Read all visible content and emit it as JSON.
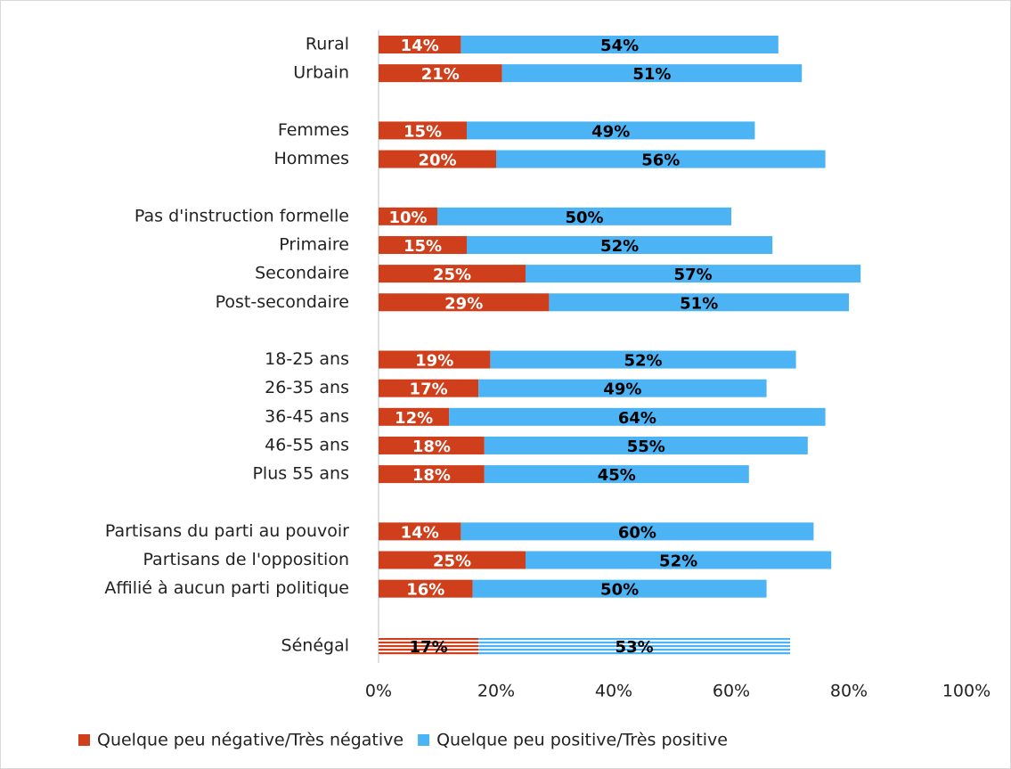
{
  "chart_data": {
    "type": "stacked_bar_horizontal",
    "categories": [
      "Rural",
      "Urbain",
      null,
      "Femmes",
      "Hommes",
      null,
      "Pas d'instruction formelle",
      "Primaire",
      "Secondaire",
      "Post-secondaire",
      null,
      "18-25 ans",
      "26-35 ans",
      "36-45 ans",
      "46-55 ans",
      "Plus 55 ans",
      null,
      "Partisans du parti au pouvoir",
      "Partisans de l'opposition",
      "Affilié à aucun parti politique",
      null,
      "Sénégal"
    ],
    "series": [
      {
        "name": "Quelque peu négative/Très négative",
        "color": "#cf3f1b",
        "values": [
          14,
          21,
          null,
          15,
          20,
          null,
          10,
          15,
          25,
          29,
          null,
          19,
          17,
          12,
          18,
          18,
          null,
          14,
          25,
          16,
          null,
          17
        ],
        "value_labels": [
          "14%",
          "21%",
          null,
          "15%",
          "20%",
          null,
          "10%",
          "15%",
          "25%",
          "29%",
          null,
          "19%",
          "17%",
          "12%",
          "18%",
          "18%",
          null,
          "14%",
          "25%",
          "16%",
          null,
          "17%"
        ]
      },
      {
        "name": "Quelque peu positive/Très positive",
        "color": "#4cb3f4",
        "values": [
          54,
          51,
          null,
          49,
          56,
          null,
          50,
          52,
          57,
          51,
          null,
          52,
          49,
          64,
          55,
          45,
          null,
          60,
          52,
          50,
          null,
          53
        ],
        "value_labels": [
          "54%",
          "51%",
          null,
          "49%",
          "56%",
          null,
          "50%",
          "52%",
          "57%",
          "51%",
          null,
          "52%",
          "49%",
          "64%",
          "55%",
          "45%",
          null,
          "60%",
          "52%",
          "50%",
          null,
          "53%"
        ]
      }
    ],
    "xlim": [
      0,
      100
    ],
    "xticks": [
      {
        "value": 0,
        "label": "0%"
      },
      {
        "value": 20,
        "label": "20%"
      },
      {
        "value": 40,
        "label": "40%"
      },
      {
        "value": 60,
        "label": "60%"
      },
      {
        "value": 80,
        "label": "80%"
      },
      {
        "value": 100,
        "label": "100%"
      }
    ],
    "highlight": "Sénégal",
    "legend": "bottom"
  }
}
